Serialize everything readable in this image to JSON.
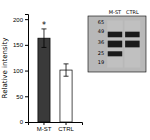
{
  "chart_data": {
    "type": "bar",
    "categories": [
      "M-ST",
      "CTRL"
    ],
    "values": [
      163,
      101
    ],
    "error": [
      18,
      12
    ],
    "colors": [
      "#3a3a3a",
      "#ffffff"
    ],
    "ylabel": "Relative intensity",
    "ylim": [
      0,
      210
    ],
    "yticks": [
      0,
      50,
      100,
      150,
      200
    ],
    "grid": false,
    "annotations": [
      "*",
      "M-ST",
      "CTRL",
      "65",
      "49",
      "36",
      "25",
      "19"
    ]
  }
}
